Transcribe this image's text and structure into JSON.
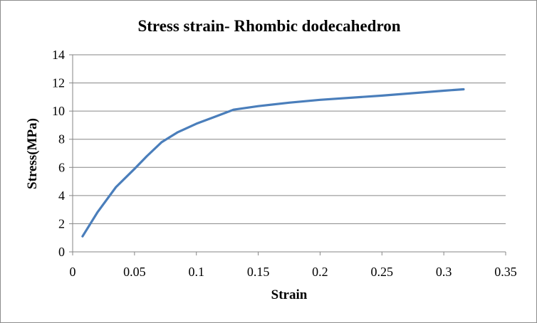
{
  "chart_data": {
    "type": "line",
    "title": "Stress strain- Rhombic dodecahedron",
    "xlabel": "Strain",
    "ylabel": "Stress(MPa)",
    "xlim": [
      0,
      0.35
    ],
    "ylim": [
      0,
      14
    ],
    "x_ticks": [
      "0",
      "0.05",
      "0.1",
      "0.15",
      "0.2",
      "0.25",
      "0.3",
      "0.35"
    ],
    "y_ticks": [
      "0",
      "2",
      "4",
      "6",
      "8",
      "10",
      "12",
      "14"
    ],
    "grid": "horizontal",
    "legend": "none",
    "series": [
      {
        "color": "#4a7ebb",
        "x": [
          0.008,
          0.02,
          0.035,
          0.05,
          0.06,
          0.072,
          0.085,
          0.1,
          0.115,
          0.13,
          0.15,
          0.175,
          0.2,
          0.25,
          0.3,
          0.316
        ],
        "y": [
          1.1,
          2.8,
          4.6,
          5.9,
          6.8,
          7.8,
          8.5,
          9.1,
          9.6,
          10.1,
          10.35,
          10.6,
          10.8,
          11.1,
          11.45,
          11.55
        ]
      }
    ]
  }
}
